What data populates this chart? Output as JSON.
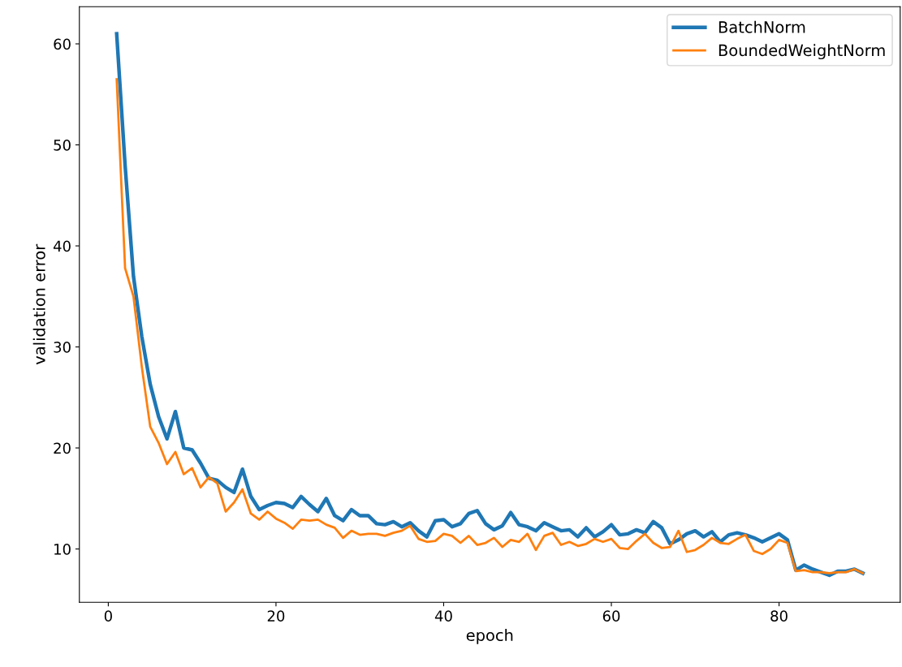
{
  "chart_data": {
    "type": "line",
    "xlabel": "epoch",
    "ylabel": "validation error",
    "x": [
      1,
      2,
      3,
      4,
      5,
      6,
      7,
      8,
      9,
      10,
      11,
      12,
      13,
      14,
      15,
      16,
      17,
      18,
      19,
      20,
      21,
      22,
      23,
      24,
      25,
      26,
      27,
      28,
      29,
      30,
      31,
      32,
      33,
      34,
      35,
      36,
      37,
      38,
      39,
      40,
      41,
      42,
      43,
      44,
      45,
      46,
      47,
      48,
      49,
      50,
      51,
      52,
      53,
      54,
      55,
      56,
      57,
      58,
      59,
      60,
      61,
      62,
      63,
      64,
      65,
      66,
      67,
      68,
      69,
      70,
      71,
      72,
      73,
      74,
      75,
      76,
      77,
      78,
      79,
      80,
      81,
      82,
      83,
      84,
      85,
      86,
      87,
      88,
      89,
      90
    ],
    "series": [
      {
        "name": "BatchNorm",
        "color": "#1f77b4",
        "values": [
          61,
          48,
          37,
          31,
          26.3,
          23.1,
          20.9,
          23.6,
          20.0,
          19.8,
          18.5,
          17.0,
          16.8,
          16.1,
          15.6,
          17.9,
          15.2,
          13.9,
          14.3,
          14.6,
          14.5,
          14.1,
          15.2,
          14.4,
          13.7,
          15.0,
          13.3,
          12.8,
          13.9,
          13.3,
          13.3,
          12.5,
          12.4,
          12.7,
          12.2,
          12.6,
          11.8,
          11.2,
          12.8,
          12.9,
          12.2,
          12.5,
          13.5,
          13.8,
          12.5,
          11.9,
          12.3,
          13.6,
          12.4,
          12.2,
          11.8,
          12.6,
          12.2,
          11.8,
          11.9,
          11.2,
          12.1,
          11.2,
          11.7,
          12.4,
          11.4,
          11.5,
          11.9,
          11.6,
          12.7,
          12.1,
          10.5,
          10.9,
          11.5,
          11.8,
          11.2,
          11.7,
          10.7,
          11.4,
          11.6,
          11.4,
          11.1,
          10.7,
          11.1,
          11.5,
          10.9,
          7.9,
          8.4,
          8.0,
          7.7,
          7.4,
          7.8,
          7.8,
          8.0,
          7.6
        ]
      },
      {
        "name": "BoundedWeightNorm",
        "color": "#ff7f0e",
        "values": [
          56.5,
          37.8,
          35,
          28,
          22.1,
          20.5,
          18.4,
          19.6,
          17.4,
          18.0,
          16.1,
          17.1,
          16.5,
          13.7,
          14.6,
          15.9,
          13.5,
          12.9,
          13.7,
          13.0,
          12.6,
          12.0,
          12.9,
          12.8,
          12.9,
          12.4,
          12.1,
          11.1,
          11.8,
          11.4,
          11.5,
          11.5,
          11.3,
          11.6,
          11.8,
          12.3,
          11.0,
          10.7,
          10.8,
          11.5,
          11.3,
          10.6,
          11.3,
          10.4,
          10.6,
          11.1,
          10.2,
          10.9,
          10.7,
          11.5,
          9.9,
          11.3,
          11.6,
          10.4,
          10.7,
          10.3,
          10.5,
          11.0,
          10.7,
          11.0,
          10.1,
          10.0,
          10.8,
          11.5,
          10.6,
          10.1,
          10.2,
          11.8,
          9.7,
          9.9,
          10.4,
          11.1,
          10.6,
          10.5,
          11.0,
          11.4,
          9.8,
          9.5,
          10.0,
          10.9,
          10.6,
          7.8,
          7.9,
          7.7,
          7.7,
          7.6,
          7.7,
          7.7,
          8.0,
          7.6
        ]
      }
    ],
    "xlim": [
      -3.45,
      94.45
    ],
    "ylim": [
      4.72,
      63.68
    ],
    "xticks": [
      0,
      20,
      40,
      60,
      80
    ],
    "yticks": [
      10,
      20,
      30,
      40,
      50,
      60
    ],
    "grid": false,
    "legend": "top right",
    "marker": "none",
    "line_style": "solid"
  }
}
